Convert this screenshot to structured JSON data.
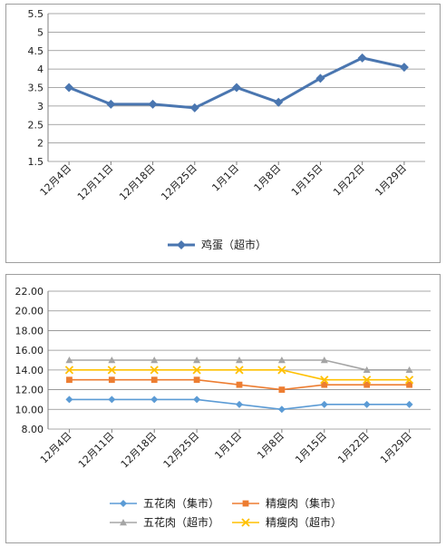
{
  "chart_data": [
    {
      "type": "line",
      "categories": [
        "12月4日",
        "12月11日",
        "12月18日",
        "12月25日",
        "1月1日",
        "1月8日",
        "1月15日",
        "1月22日",
        "1月29日"
      ],
      "series": [
        {
          "name": "鸡蛋（超市）",
          "values": [
            3.5,
            3.05,
            3.05,
            2.95,
            3.5,
            3.1,
            3.75,
            4.3,
            4.05
          ],
          "color": "#4a76b0",
          "marker": "diamond"
        }
      ],
      "y_ticks": [
        "1.5",
        "2",
        "2.5",
        "3",
        "3.5",
        "4",
        "4.5",
        "5",
        "5.5"
      ],
      "ylim": [
        1.5,
        5.5
      ],
      "grid": true,
      "legend": "bottom"
    },
    {
      "type": "line",
      "categories": [
        "12月4日",
        "12月11日",
        "12月18日",
        "12月25日",
        "1月1日",
        "1月8日",
        "1月15日",
        "1月22日",
        "1月29日"
      ],
      "series": [
        {
          "name": "五花肉（集市）",
          "values": [
            11,
            11,
            11,
            11,
            10.5,
            10,
            10.5,
            10.5,
            10.5
          ],
          "color": "#5b9bd5",
          "marker": "diamond"
        },
        {
          "name": "精瘦肉（集市）",
          "values": [
            13,
            13,
            13,
            13,
            12.5,
            12,
            12.5,
            12.5,
            12.5
          ],
          "color": "#ed7d31",
          "marker": "square"
        },
        {
          "name": "五花肉（超市）",
          "values": [
            15,
            15,
            15,
            15,
            15,
            15,
            15,
            14,
            14
          ],
          "color": "#a5a5a5",
          "marker": "triangle"
        },
        {
          "name": "精瘦肉（超市）",
          "values": [
            14,
            14,
            14,
            14,
            14,
            14,
            13,
            13,
            13
          ],
          "color": "#ffc000",
          "marker": "x"
        }
      ],
      "y_ticks": [
        "8.00",
        "10.00",
        "12.00",
        "14.00",
        "16.00",
        "18.00",
        "20.00",
        "22.00"
      ],
      "ylim": [
        8,
        22
      ],
      "grid": true,
      "legend": "bottom"
    }
  ]
}
